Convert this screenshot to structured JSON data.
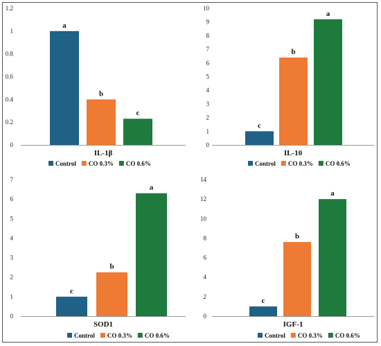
{
  "colors": {
    "Control": "#1f6187",
    "CO 0.3%": "#ee7a33",
    "CO 0.6%": "#1f7a3e"
  },
  "chart_data": [
    {
      "type": "bar",
      "xlabel": "IL-1β",
      "categories": [
        "Control",
        "CO 0.3%",
        "CO 0.6%"
      ],
      "values": [
        1.0,
        0.4,
        0.23
      ],
      "labels": [
        "a",
        "b",
        "c"
      ],
      "ylim": [
        0,
        1.2
      ],
      "yticks": [
        "0",
        "0.2",
        "0.4",
        "0.6",
        "0.8",
        "1",
        "1.2"
      ],
      "legend": [
        "Control",
        "CO 0.3%",
        "CO 0.6%"
      ],
      "legend_position": "bottom",
      "grid": false
    },
    {
      "type": "bar",
      "xlabel": "IL-10",
      "categories": [
        "Control",
        "CO 0.3%",
        "CO 0.6%"
      ],
      "values": [
        1.0,
        6.4,
        9.2
      ],
      "labels": [
        "c",
        "b",
        "a"
      ],
      "ylim": [
        0,
        10
      ],
      "yticks": [
        "0",
        "1",
        "2",
        "3",
        "4",
        "5",
        "6",
        "7",
        "8",
        "9",
        "10"
      ],
      "legend": [
        "Control",
        "CO 0.3%",
        "CO 0.6%"
      ],
      "legend_position": "bottom",
      "grid": false
    },
    {
      "type": "bar",
      "xlabel": "SOD1",
      "categories": [
        "Control",
        "CO 0.3%",
        "CO 0.6%"
      ],
      "values": [
        1.0,
        2.25,
        6.3
      ],
      "labels": [
        "c",
        "b",
        "a"
      ],
      "ylim": [
        0,
        7
      ],
      "yticks": [
        "0",
        "1",
        "2",
        "3",
        "4",
        "5",
        "6",
        "7"
      ],
      "legend": [
        "Control",
        "CO 0.3%",
        "CO 0.6%"
      ],
      "legend_position": "bottom",
      "grid": false
    },
    {
      "type": "bar",
      "xlabel": "IGF-1",
      "categories": [
        "Control",
        "CO 0.3%",
        "CO 0.6%"
      ],
      "values": [
        1.0,
        7.6,
        12.0
      ],
      "labels": [
        "c",
        "b",
        "a"
      ],
      "ylim": [
        0,
        14
      ],
      "yticks": [
        "0",
        "2",
        "4",
        "6",
        "8",
        "10",
        "12",
        "14"
      ],
      "legend": [
        "Control",
        "CO 0.3%",
        "CO 0.6%"
      ],
      "legend_position": "bottom",
      "grid": false
    }
  ]
}
